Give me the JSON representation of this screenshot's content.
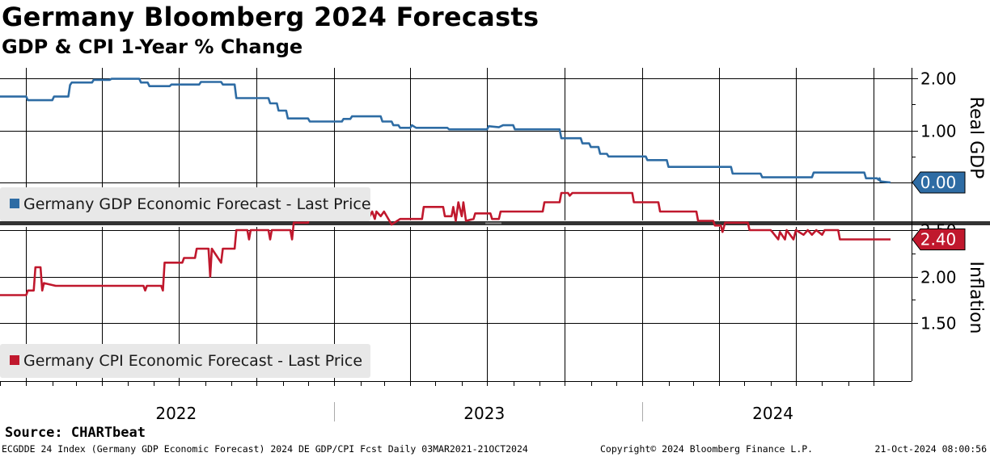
{
  "title": "Germany Bloomberg 2024 Forecasts",
  "subtitle": "GDP & CPI 1-Year % Change",
  "source": "Source:  CHARTbeat",
  "footer": {
    "left": "ECGDDE 24 Index (Germany GDP Economic Forecast) 2024 DE GDP/CPI Fcst  Daily 03MAR2021-21OCT2024",
    "middle": "Copyright© 2024 Bloomberg Finance L.P.",
    "right": "21-Oct-2024 08:00:56"
  },
  "chart_data": [
    {
      "type": "line",
      "panel": "top",
      "ylabel": "Real GDP",
      "ylim": [
        -0.5,
        2.2
      ],
      "yticks": [
        0.0,
        1.0,
        2.0
      ],
      "ytick_labels": [
        "",
        "1.00",
        "2.00"
      ],
      "grid": true,
      "x_range": [
        "2021-12-01",
        "2024-10-21"
      ],
      "year_labels": [
        "2022",
        "2023",
        "2024"
      ],
      "last_value_label": "0.00",
      "color": "#2e6ca4",
      "series": [
        {
          "name": "Germany GDP Economic Forecast - Last Price",
          "points": [
            [
              "2021-12-01",
              1.65
            ],
            [
              "2022-01-01",
              1.65
            ],
            [
              "2022-01-03",
              1.58
            ],
            [
              "2022-02-01",
              1.58
            ],
            [
              "2022-02-03",
              1.65
            ],
            [
              "2022-02-20",
              1.65
            ],
            [
              "2022-02-22",
              1.87
            ],
            [
              "2022-02-24",
              1.92
            ],
            [
              "2022-03-20",
              1.92
            ],
            [
              "2022-03-22",
              1.97
            ],
            [
              "2022-04-10",
              1.97
            ],
            [
              "2022-04-12",
              1.99
            ],
            [
              "2022-05-15",
              1.99
            ],
            [
              "2022-05-17",
              1.92
            ],
            [
              "2022-05-25",
              1.92
            ],
            [
              "2022-05-27",
              1.85
            ],
            [
              "2022-06-20",
              1.85
            ],
            [
              "2022-06-22",
              1.88
            ],
            [
              "2022-07-25",
              1.88
            ],
            [
              "2022-07-27",
              1.93
            ],
            [
              "2022-08-20",
              1.93
            ],
            [
              "2022-08-22",
              1.88
            ],
            [
              "2022-09-05",
              1.88
            ],
            [
              "2022-09-07",
              1.62
            ],
            [
              "2022-10-15",
              1.62
            ],
            [
              "2022-10-17",
              1.52
            ],
            [
              "2022-10-25",
              1.52
            ],
            [
              "2022-10-27",
              1.38
            ],
            [
              "2022-11-05",
              1.38
            ],
            [
              "2022-11-07",
              1.23
            ],
            [
              "2022-12-01",
              1.23
            ],
            [
              "2022-12-03",
              1.17
            ],
            [
              "2023-01-10",
              1.17
            ],
            [
              "2023-01-12",
              1.22
            ],
            [
              "2023-01-20",
              1.22
            ],
            [
              "2023-01-22",
              1.27
            ],
            [
              "2023-02-25",
              1.27
            ],
            [
              "2023-02-27",
              1.17
            ],
            [
              "2023-03-10",
              1.17
            ],
            [
              "2023-03-12",
              1.1
            ],
            [
              "2023-03-18",
              1.1
            ],
            [
              "2023-03-20",
              1.05
            ],
            [
              "2023-04-01",
              1.05
            ],
            [
              "2023-04-03",
              1.1
            ],
            [
              "2023-04-08",
              1.05
            ],
            [
              "2023-05-15",
              1.05
            ],
            [
              "2023-05-17",
              1.02
            ],
            [
              "2023-07-01",
              1.02
            ],
            [
              "2023-07-03",
              1.08
            ],
            [
              "2023-07-15",
              1.06
            ],
            [
              "2023-07-20",
              1.1
            ],
            [
              "2023-08-01",
              1.1
            ],
            [
              "2023-08-03",
              1.02
            ],
            [
              "2023-09-25",
              1.02
            ],
            [
              "2023-09-27",
              0.85
            ],
            [
              "2023-10-20",
              0.85
            ],
            [
              "2023-10-22",
              0.75
            ],
            [
              "2023-10-30",
              0.75
            ],
            [
              "2023-11-01",
              0.68
            ],
            [
              "2023-11-10",
              0.68
            ],
            [
              "2023-11-12",
              0.55
            ],
            [
              "2023-11-20",
              0.55
            ],
            [
              "2023-11-22",
              0.5
            ],
            [
              "2024-01-05",
              0.5
            ],
            [
              "2024-01-07",
              0.43
            ],
            [
              "2024-01-30",
              0.43
            ],
            [
              "2024-02-01",
              0.3
            ],
            [
              "2024-04-15",
              0.3
            ],
            [
              "2024-04-17",
              0.17
            ],
            [
              "2024-05-20",
              0.17
            ],
            [
              "2024-05-22",
              0.1
            ],
            [
              "2024-07-20",
              0.1
            ],
            [
              "2024-07-22",
              0.19
            ],
            [
              "2024-09-20",
              0.19
            ],
            [
              "2024-09-22",
              0.08
            ],
            [
              "2024-10-05",
              0.08
            ],
            [
              "2024-10-07",
              0.05
            ],
            [
              "2024-10-08",
              0.08
            ],
            [
              "2024-10-09",
              0.02
            ],
            [
              "2024-10-21",
              0.0
            ]
          ]
        }
      ]
    },
    {
      "type": "line",
      "panel": "bottom",
      "ylabel": "Inflation",
      "ylim": [
        1.45,
        3.05
      ],
      "yticks": [
        1.5,
        2.0,
        2.5
      ],
      "ytick_labels": [
        "1.50",
        "2.00",
        "2.50"
      ],
      "grid": true,
      "x_range": [
        "2021-12-01",
        "2024-10-21"
      ],
      "year_labels": [
        "2022",
        "2023",
        "2024"
      ],
      "last_value_label": "2.40",
      "color": "#c0182d",
      "series": [
        {
          "name": "Germany CPI Economic Forecast - Last Price",
          "points": [
            [
              "2021-12-01",
              1.8
            ],
            [
              "2022-01-01",
              1.8
            ],
            [
              "2022-01-03",
              1.85
            ],
            [
              "2022-01-10",
              1.85
            ],
            [
              "2022-01-12",
              2.1
            ],
            [
              "2022-01-18",
              2.1
            ],
            [
              "2022-01-20",
              1.85
            ],
            [
              "2022-01-22",
              1.93
            ],
            [
              "2022-02-05",
              1.9
            ],
            [
              "2022-05-20",
              1.9
            ],
            [
              "2022-05-22",
              1.85
            ],
            [
              "2022-05-24",
              1.9
            ],
            [
              "2022-06-10",
              1.9
            ],
            [
              "2022-06-12",
              1.85
            ],
            [
              "2022-06-14",
              2.15
            ],
            [
              "2022-07-05",
              2.15
            ],
            [
              "2022-07-07",
              2.2
            ],
            [
              "2022-07-20",
              2.2
            ],
            [
              "2022-07-22",
              2.3
            ],
            [
              "2022-08-05",
              2.3
            ],
            [
              "2022-08-07",
              2.0
            ],
            [
              "2022-08-09",
              2.3
            ],
            [
              "2022-08-20",
              2.15
            ],
            [
              "2022-08-22",
              2.3
            ],
            [
              "2022-09-05",
              2.3
            ],
            [
              "2022-09-07",
              2.5
            ],
            [
              "2022-09-20",
              2.5
            ],
            [
              "2022-09-22",
              2.4
            ],
            [
              "2022-09-24",
              2.5
            ],
            [
              "2022-10-15",
              2.5
            ],
            [
              "2022-10-17",
              2.4
            ],
            [
              "2022-10-19",
              2.5
            ],
            [
              "2022-11-10",
              2.5
            ],
            [
              "2022-11-12",
              2.4
            ],
            [
              "2022-11-14",
              2.58
            ],
            [
              "2022-12-01",
              2.58
            ],
            [
              "2022-12-03",
              2.7
            ],
            [
              "2022-12-20",
              2.7
            ],
            [
              "2022-12-22",
              2.9
            ],
            [
              "2023-01-25",
              2.9
            ],
            [
              "2023-01-27",
              2.63
            ],
            [
              "2023-02-05",
              2.63
            ],
            [
              "2023-02-07",
              2.7
            ],
            [
              "2023-02-12",
              2.65
            ],
            [
              "2023-02-15",
              2.7
            ],
            [
              "2023-02-18",
              2.62
            ],
            [
              "2023-02-20",
              2.7
            ],
            [
              "2023-02-25",
              2.65
            ],
            [
              "2023-03-01",
              2.7
            ],
            [
              "2023-03-10",
              2.56
            ],
            [
              "2023-03-20",
              2.62
            ],
            [
              "2023-04-15",
              2.62
            ],
            [
              "2023-04-17",
              2.75
            ],
            [
              "2023-05-10",
              2.75
            ],
            [
              "2023-05-12",
              2.65
            ],
            [
              "2023-05-20",
              2.65
            ],
            [
              "2023-05-22",
              2.75
            ],
            [
              "2023-05-25",
              2.6
            ],
            [
              "2023-05-28",
              2.8
            ],
            [
              "2023-06-01",
              2.65
            ],
            [
              "2023-06-03",
              2.8
            ],
            [
              "2023-06-06",
              2.6
            ],
            [
              "2023-06-15",
              2.62
            ],
            [
              "2023-06-17",
              2.68
            ],
            [
              "2023-07-05",
              2.68
            ],
            [
              "2023-07-07",
              2.62
            ],
            [
              "2023-07-15",
              2.62
            ],
            [
              "2023-07-17",
              2.7
            ],
            [
              "2023-09-05",
              2.7
            ],
            [
              "2023-09-07",
              2.8
            ],
            [
              "2023-09-25",
              2.8
            ],
            [
              "2023-09-27",
              2.9
            ],
            [
              "2023-10-05",
              2.9
            ],
            [
              "2023-10-07",
              2.87
            ],
            [
              "2023-10-10",
              2.9
            ],
            [
              "2023-12-20",
              2.9
            ],
            [
              "2023-12-22",
              2.8
            ],
            [
              "2024-01-20",
              2.8
            ],
            [
              "2024-01-22",
              2.7
            ],
            [
              "2024-03-05",
              2.7
            ],
            [
              "2024-03-07",
              2.6
            ],
            [
              "2024-03-25",
              2.6
            ],
            [
              "2024-03-27",
              2.55
            ],
            [
              "2024-04-03",
              2.55
            ],
            [
              "2024-04-05",
              2.48
            ],
            [
              "2024-04-08",
              2.58
            ],
            [
              "2024-05-05",
              2.58
            ],
            [
              "2024-05-07",
              2.5
            ],
            [
              "2024-06-01",
              2.5
            ],
            [
              "2024-06-03",
              2.48
            ],
            [
              "2024-06-10",
              2.4
            ],
            [
              "2024-06-12",
              2.48
            ],
            [
              "2024-06-18",
              2.4
            ],
            [
              "2024-06-20",
              2.5
            ],
            [
              "2024-06-28",
              2.4
            ],
            [
              "2024-07-01",
              2.5
            ],
            [
              "2024-07-10",
              2.45
            ],
            [
              "2024-07-15",
              2.5
            ],
            [
              "2024-07-20",
              2.45
            ],
            [
              "2024-07-25",
              2.5
            ],
            [
              "2024-08-01",
              2.45
            ],
            [
              "2024-08-04",
              2.5
            ],
            [
              "2024-08-20",
              2.5
            ],
            [
              "2024-08-22",
              2.4
            ],
            [
              "2024-10-21",
              2.4
            ]
          ]
        }
      ]
    }
  ]
}
